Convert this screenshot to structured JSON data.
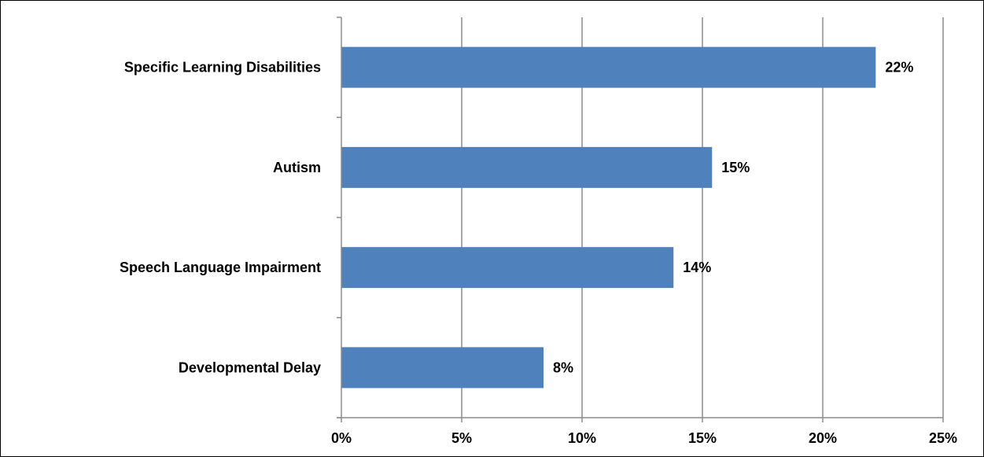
{
  "chart_data": {
    "type": "bar",
    "orientation": "horizontal",
    "categories": [
      "Specific Learning Disabilities",
      "Autism",
      "Speech Language Impairment",
      "Developmental Delay"
    ],
    "values": [
      22.2,
      15.4,
      13.8,
      8.4
    ],
    "data_labels": [
      "22%",
      "15%",
      "14%",
      "8%"
    ],
    "x_ticks": [
      0,
      5,
      10,
      15,
      20,
      25
    ],
    "x_tick_labels": [
      "0%",
      "5%",
      "10%",
      "15%",
      "20%",
      "25%"
    ],
    "xlim": [
      0,
      25
    ],
    "title": "",
    "xlabel": "",
    "ylabel": "",
    "grid": "vertical",
    "legend": "none",
    "colors": {
      "bar": "#4f81bd",
      "grid": "#8c8c8c",
      "axis": "#8c8c8c",
      "frame": "#000000"
    }
  }
}
